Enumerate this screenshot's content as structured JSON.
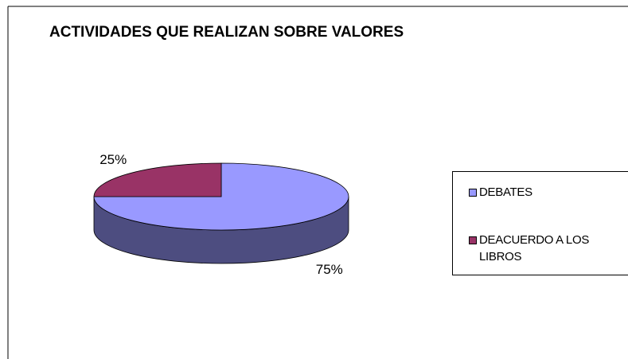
{
  "chart_data": {
    "type": "pie",
    "title": "ACTIVIDADES QUE REALIZAN SOBRE VALORES",
    "categories": [
      "DEBATES",
      "DEACUERDO A LOS LIBROS"
    ],
    "values": [
      75,
      25
    ],
    "value_labels": [
      "75%",
      "25%"
    ],
    "colors": [
      "#9999ff",
      "#993366"
    ]
  }
}
